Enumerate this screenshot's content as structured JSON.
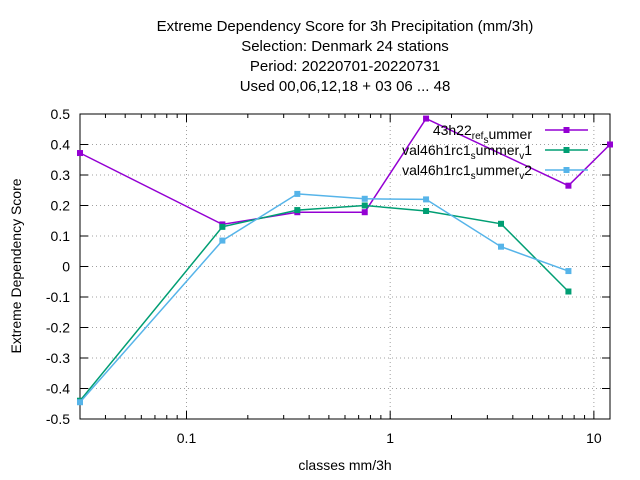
{
  "chart_data": {
    "type": "line",
    "title_lines": [
      "Extreme Dependency Score  for 3h Precipitation (mm/3h)",
      "Selection: Denmark     24 stations",
      "Period: 20220701-20220731",
      "Used  00,06,12,18  + 03 06 ... 48"
    ],
    "xlabel": "classes mm/3h",
    "ylabel": "Extreme Dependency Score",
    "xscale": "log",
    "xlim": [
      0.03,
      12
    ],
    "ylim": [
      -0.5,
      0.5
    ],
    "x_ticks": [
      {
        "value": 0.1,
        "label": "0.1"
      },
      {
        "value": 1,
        "label": "1"
      },
      {
        "value": 10,
        "label": "10"
      }
    ],
    "y_ticks": [
      {
        "value": -0.5,
        "label": "-0.5"
      },
      {
        "value": -0.4,
        "label": "-0.4"
      },
      {
        "value": -0.3,
        "label": "-0.3"
      },
      {
        "value": -0.2,
        "label": "-0.2"
      },
      {
        "value": -0.1,
        "label": "-0.1"
      },
      {
        "value": 0,
        "label": "0"
      },
      {
        "value": 0.1,
        "label": "0.1"
      },
      {
        "value": 0.2,
        "label": "0.2"
      },
      {
        "value": 0.3,
        "label": "0.3"
      },
      {
        "value": 0.4,
        "label": "0.4"
      },
      {
        "value": 0.5,
        "label": "0.5"
      }
    ],
    "grid": true,
    "legend_position": "top-right",
    "series": [
      {
        "label_main": "43h22",
        "label_parts": [
          {
            "text": "43h22",
            "sub": false
          },
          {
            "text": "ref",
            "sub": true
          },
          {
            "text": "s",
            "sub": true
          },
          {
            "text": "ummer",
            "sub": false
          }
        ],
        "color": "#9400d3",
        "marker": "square",
        "points": [
          {
            "x": 0.03,
            "y": 0.372
          },
          {
            "x": 0.15,
            "y": 0.138
          },
          {
            "x": 0.35,
            "y": 0.178
          },
          {
            "x": 0.75,
            "y": 0.178
          },
          {
            "x": 1.5,
            "y": 0.485
          },
          {
            "x": 7.5,
            "y": 0.265
          },
          {
            "x": 12,
            "y": 0.4
          }
        ]
      },
      {
        "label_parts": [
          {
            "text": "val46h1rc1",
            "sub": false
          },
          {
            "text": "s",
            "sub": true
          },
          {
            "text": "ummer",
            "sub": false
          },
          {
            "text": "v",
            "sub": true
          },
          {
            "text": "1",
            "sub": false
          }
        ],
        "color": "#009e73",
        "marker": "square",
        "points": [
          {
            "x": 0.03,
            "y": -0.44
          },
          {
            "x": 0.15,
            "y": 0.13
          },
          {
            "x": 0.35,
            "y": 0.185
          },
          {
            "x": 0.75,
            "y": 0.2
          },
          {
            "x": 1.5,
            "y": 0.182
          },
          {
            "x": 3.5,
            "y": 0.14
          },
          {
            "x": 7.5,
            "y": -0.082
          }
        ]
      },
      {
        "label_parts": [
          {
            "text": "val46h1rc1",
            "sub": false
          },
          {
            "text": "s",
            "sub": true
          },
          {
            "text": "ummer",
            "sub": false
          },
          {
            "text": "v",
            "sub": true
          },
          {
            "text": "2",
            "sub": false
          }
        ],
        "color": "#56b4e9",
        "marker": "square",
        "points": [
          {
            "x": 0.03,
            "y": -0.445
          },
          {
            "x": 0.15,
            "y": 0.085
          },
          {
            "x": 0.35,
            "y": 0.238
          },
          {
            "x": 0.75,
            "y": 0.222
          },
          {
            "x": 1.5,
            "y": 0.22
          },
          {
            "x": 3.5,
            "y": 0.065
          },
          {
            "x": 7.5,
            "y": -0.015
          }
        ]
      }
    ]
  }
}
